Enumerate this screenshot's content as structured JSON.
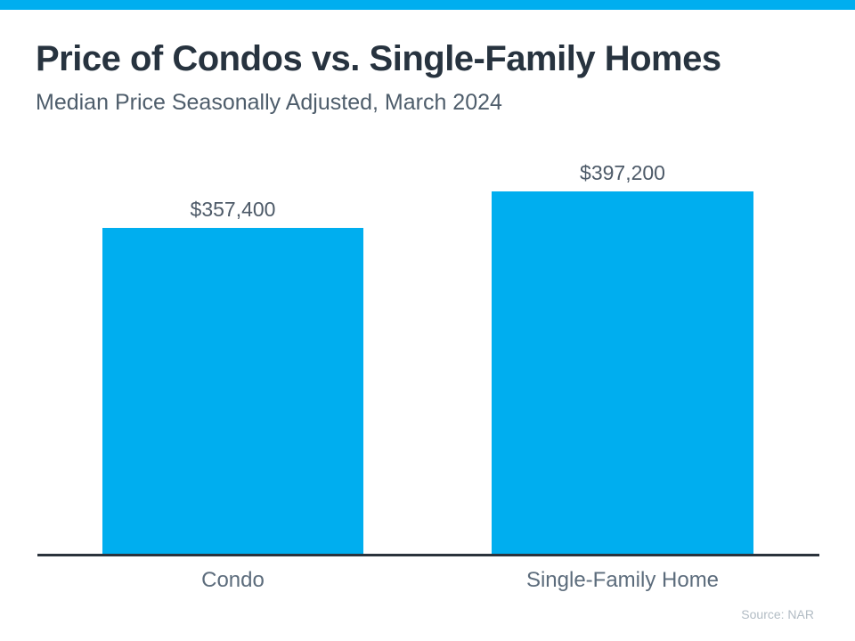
{
  "page": {
    "accent_color": "#00aeef",
    "axis_line_color": "#2b333c",
    "title_color": "#27333f",
    "label_color": "#5c6c7c"
  },
  "header": {
    "title": "Price of Condos vs. Single-Family Homes",
    "subtitle": "Median Price Seasonally Adjusted, March 2024"
  },
  "chart_data": {
    "type": "bar",
    "title": "Price of Condos vs. Single-Family Homes",
    "subtitle": "Median Price Seasonally Adjusted, March 2024",
    "categories": [
      "Condo",
      "Single-Family Home"
    ],
    "values": [
      357400,
      397200
    ],
    "value_labels": [
      "$357,400",
      "$397,200"
    ],
    "xlabel": "",
    "ylabel": "",
    "ylim": [
      0,
      397200
    ],
    "grid": false,
    "legend": false,
    "bar_color": "#00aeef",
    "source": "Source: NAR"
  }
}
